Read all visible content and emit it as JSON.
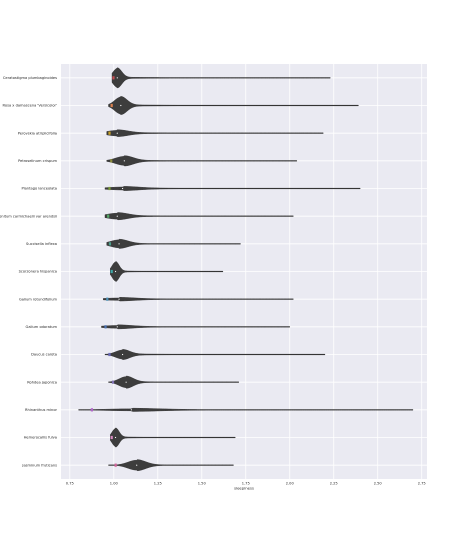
{
  "chart_data": {
    "type": "violin",
    "orientation": "horizontal",
    "xlabel": "sleepiness",
    "ylabel": "",
    "xlim": [
      0.7,
      2.78
    ],
    "xticks": [
      0.75,
      1.0,
      1.25,
      1.5,
      1.75,
      2.0,
      2.25,
      2.5,
      2.75
    ],
    "xtick_labels": [
      "0.75",
      "1.00",
      "1.25",
      "1.50",
      "1.75",
      "2.00",
      "2.25",
      "2.50",
      "2.75"
    ],
    "grid": true,
    "background": "#eaeaf2",
    "violin_color": "#3d3d3d",
    "categories": [
      {
        "label": "Ceratostigma plumbaginoides",
        "min": 0.99,
        "max": 2.23,
        "peak": 1.02,
        "spread": 0.025,
        "width": 0.95,
        "accent": "#c44e52"
      },
      {
        "label": "Rosa x damascena 'Versicolor'",
        "min": 0.97,
        "max": 2.39,
        "peak": 1.04,
        "spread": 0.035,
        "width": 0.85,
        "accent": "#dd8452"
      },
      {
        "label": "Perovskia atriplicifolia",
        "min": 0.96,
        "max": 2.19,
        "peak": 1.02,
        "spread": 0.06,
        "width": 0.28,
        "accent": "#c9a227"
      },
      {
        "label": "Petroselinum crispum",
        "min": 0.96,
        "max": 2.04,
        "peak": 1.06,
        "spread": 0.05,
        "width": 0.45,
        "accent": "#8c8c3c"
      },
      {
        "label": "Plantago lanceolata",
        "min": 0.95,
        "max": 2.4,
        "peak": 1.05,
        "spread": 0.09,
        "width": 0.15,
        "accent": "#7a9a3a"
      },
      {
        "label": "Aconitum carmichaelii var arendsii",
        "min": 0.95,
        "max": 2.02,
        "peak": 1.02,
        "spread": 0.06,
        "width": 0.3,
        "accent": "#55a868"
      },
      {
        "label": "Succisella inflexa",
        "min": 0.96,
        "max": 1.72,
        "peak": 1.03,
        "spread": 0.05,
        "width": 0.4,
        "accent": "#4c9f8c"
      },
      {
        "label": "Scorzonera hispanica",
        "min": 0.98,
        "max": 1.62,
        "peak": 1.01,
        "spread": 0.02,
        "width": 0.95,
        "accent": "#3fa9a9"
      },
      {
        "label": "Galium rotundifolium",
        "min": 0.94,
        "max": 2.02,
        "peak": 1.03,
        "spread": 0.09,
        "width": 0.12,
        "accent": "#4c8fb5"
      },
      {
        "label": "Galium odoratum",
        "min": 0.93,
        "max": 2.0,
        "peak": 1.02,
        "spread": 0.08,
        "width": 0.14,
        "accent": "#4c72b0"
      },
      {
        "label": "Daucus carota",
        "min": 0.95,
        "max": 2.2,
        "peak": 1.05,
        "spread": 0.04,
        "width": 0.45,
        "accent": "#6a6ab8"
      },
      {
        "label": "Rohdea japonica",
        "min": 0.97,
        "max": 1.71,
        "peak": 1.07,
        "spread": 0.04,
        "width": 0.55,
        "accent": "#8172b3"
      },
      {
        "label": "Rhinanthus minor",
        "min": 0.8,
        "max": 2.7,
        "peak": 1.1,
        "spread": 0.15,
        "width": 0.1,
        "accent": "#b064c8"
      },
      {
        "label": "Hemerocallis fulva",
        "min": 0.98,
        "max": 1.69,
        "peak": 1.01,
        "spread": 0.02,
        "width": 0.9,
        "accent": "#da8bc3"
      },
      {
        "label": "Jasminum fruticans",
        "min": 0.97,
        "max": 1.68,
        "peak": 1.13,
        "spread": 0.05,
        "width": 0.5,
        "accent": "#d0649a"
      }
    ]
  }
}
